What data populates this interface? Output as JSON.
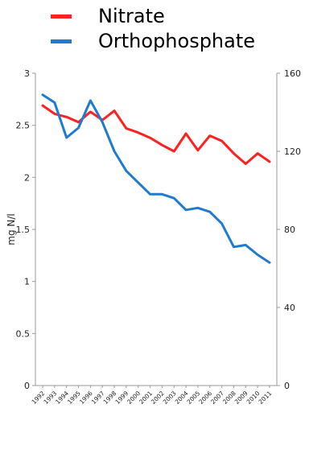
{
  "chart_data": {
    "type": "line",
    "title": "",
    "xlabel": "",
    "ylabel": "mg N/l",
    "y2label": "",
    "categories": [
      "1992",
      "1993",
      "1994",
      "1995",
      "1996",
      "1997",
      "1998",
      "1999",
      "2000",
      "2001",
      "2002",
      "2003",
      "2004",
      "2005",
      "2006",
      "2007",
      "2008",
      "2009",
      "2010",
      "2011"
    ],
    "ylim": [
      0,
      3
    ],
    "y2lim": [
      0,
      160
    ],
    "yticks": [
      "0",
      "0.5",
      "1",
      "1.5",
      "2",
      "2.5",
      "3"
    ],
    "y2ticks": [
      "0",
      "40",
      "80",
      "120",
      "160"
    ],
    "legend_position": "top",
    "grid": false,
    "series": [
      {
        "name": "Nitrate",
        "color": "#ff2020",
        "axis": "left",
        "values": [
          2.69,
          2.61,
          2.58,
          2.53,
          2.63,
          2.55,
          2.64,
          2.47,
          2.43,
          2.38,
          2.31,
          2.25,
          2.42,
          2.26,
          2.4,
          2.35,
          2.23,
          2.13,
          2.23,
          2.15
        ]
      },
      {
        "name": "Orthophosphate",
        "color": "#1f7bd0",
        "axis": "right",
        "values": [
          149,
          145,
          127,
          132,
          146,
          135,
          120,
          110,
          104,
          98,
          98,
          96,
          90,
          91,
          89,
          83,
          71,
          72,
          67,
          63
        ]
      }
    ]
  }
}
